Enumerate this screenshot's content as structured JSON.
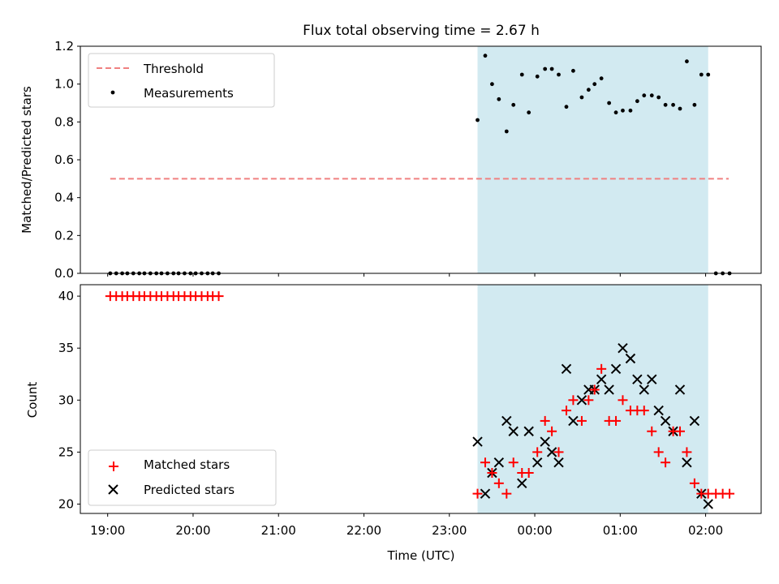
{
  "title": "Flux total observing time = 2.67 h",
  "colors": {
    "threshold": "#f08080",
    "measurement": "#000000",
    "matched": "#ff0000",
    "predicted": "#000000",
    "band": "#add8e6"
  },
  "chart_data": [
    {
      "type": "scatter",
      "ylabel": "Matched/Predicted stars",
      "ylim": [
        0,
        1.2
      ],
      "yticks": [
        "0.0",
        "0.2",
        "0.4",
        "0.6",
        "0.8",
        "1.0",
        "1.2"
      ],
      "xlim": [
        18.68,
        26.65
      ],
      "xticks": [
        19,
        20,
        21,
        22,
        23,
        24,
        25,
        26
      ],
      "shaded_span": [
        23.33,
        26.03
      ],
      "legend": {
        "position": "top-left",
        "entries": [
          "Threshold",
          "Measurements"
        ]
      },
      "threshold": {
        "name": "Threshold",
        "x": [
          19.03,
          26.27
        ],
        "y": 0.5
      },
      "measurements": {
        "name": "Measurements",
        "x": [
          19.03,
          19.1,
          19.17,
          19.23,
          19.3,
          19.37,
          19.43,
          19.5,
          19.57,
          19.63,
          19.7,
          19.77,
          19.83,
          19.9,
          19.97,
          20.03,
          20.1,
          20.17,
          20.23,
          20.3,
          23.33,
          23.42,
          23.5,
          23.58,
          23.67,
          23.75,
          23.85,
          23.93,
          24.03,
          24.12,
          24.2,
          24.28,
          24.37,
          24.45,
          24.55,
          24.63,
          24.7,
          24.78,
          24.87,
          24.95,
          25.03,
          25.12,
          25.2,
          25.28,
          25.37,
          25.45,
          25.53,
          25.62,
          25.7,
          25.78,
          25.87,
          25.95,
          26.03,
          26.12,
          26.2,
          26.28
        ],
        "y": [
          0,
          0,
          0,
          0,
          0,
          0,
          0,
          0,
          0,
          0,
          0,
          0,
          0,
          0,
          0,
          0,
          0,
          0,
          0,
          0,
          0.81,
          1.15,
          1.0,
          0.92,
          0.75,
          0.89,
          1.05,
          0.85,
          1.04,
          1.08,
          1.08,
          1.05,
          0.88,
          1.07,
          0.93,
          0.97,
          1.0,
          1.03,
          0.9,
          0.85,
          0.86,
          0.86,
          0.91,
          0.94,
          0.94,
          0.93,
          0.89,
          0.89,
          0.87,
          1.12,
          0.89,
          1.05,
          1.05,
          0,
          0,
          0
        ]
      }
    },
    {
      "type": "scatter",
      "title": "",
      "xlabel": "Time (UTC)",
      "ylabel": "Count",
      "ylim": [
        19.1,
        41.1
      ],
      "yticks": [
        "20",
        "25",
        "30",
        "35",
        "40"
      ],
      "xlim": [
        18.68,
        26.65
      ],
      "xticks": [
        19,
        20,
        21,
        22,
        23,
        24,
        25,
        26
      ],
      "xticklabels": [
        "19:00",
        "20:00",
        "21:00",
        "22:00",
        "23:00",
        "00:00",
        "01:00",
        "02:00"
      ],
      "shaded_span": [
        23.33,
        26.03
      ],
      "legend": {
        "position": "bottom-left",
        "entries": [
          "Matched stars",
          "Predicted stars"
        ]
      },
      "series": [
        {
          "name": "Matched stars",
          "marker": "plus",
          "x": [
            19.03,
            19.1,
            19.17,
            19.23,
            19.3,
            19.37,
            19.43,
            19.5,
            19.57,
            19.63,
            19.7,
            19.77,
            19.83,
            19.9,
            19.97,
            20.03,
            20.1,
            20.17,
            20.23,
            20.3,
            23.33,
            23.42,
            23.5,
            23.58,
            23.67,
            23.75,
            23.85,
            23.93,
            24.03,
            24.12,
            24.2,
            24.28,
            24.37,
            24.45,
            24.55,
            24.63,
            24.7,
            24.78,
            24.87,
            24.95,
            25.03,
            25.12,
            25.2,
            25.28,
            25.37,
            25.45,
            25.53,
            25.62,
            25.7,
            25.78,
            25.87,
            25.95,
            26.03,
            26.12,
            26.2,
            26.28
          ],
          "y": [
            40,
            40,
            40,
            40,
            40,
            40,
            40,
            40,
            40,
            40,
            40,
            40,
            40,
            40,
            40,
            40,
            40,
            40,
            40,
            40,
            21,
            24,
            23,
            22,
            21,
            24,
            23,
            23,
            25,
            28,
            27,
            25,
            29,
            30,
            28,
            30,
            31,
            33,
            28,
            28,
            30,
            29,
            29,
            29,
            27,
            25,
            24,
            27,
            27,
            25,
            22,
            21,
            21,
            21,
            21,
            21
          ]
        },
        {
          "name": "Predicted stars",
          "marker": "x",
          "x": [
            23.33,
            23.42,
            23.5,
            23.58,
            23.67,
            23.75,
            23.85,
            23.93,
            24.03,
            24.12,
            24.2,
            24.28,
            24.37,
            24.45,
            24.55,
            24.63,
            24.7,
            24.78,
            24.87,
            24.95,
            25.03,
            25.12,
            25.2,
            25.28,
            25.37,
            25.45,
            25.53,
            25.62,
            25.7,
            25.78,
            25.87,
            25.95,
            26.03
          ],
          "y": [
            26,
            21,
            23,
            24,
            28,
            27,
            22,
            27,
            24,
            26,
            25,
            24,
            33,
            28,
            30,
            31,
            31,
            32,
            31,
            33,
            35,
            34,
            32,
            31,
            32,
            29,
            28,
            27,
            31,
            24,
            28,
            21,
            20
          ]
        }
      ]
    }
  ]
}
